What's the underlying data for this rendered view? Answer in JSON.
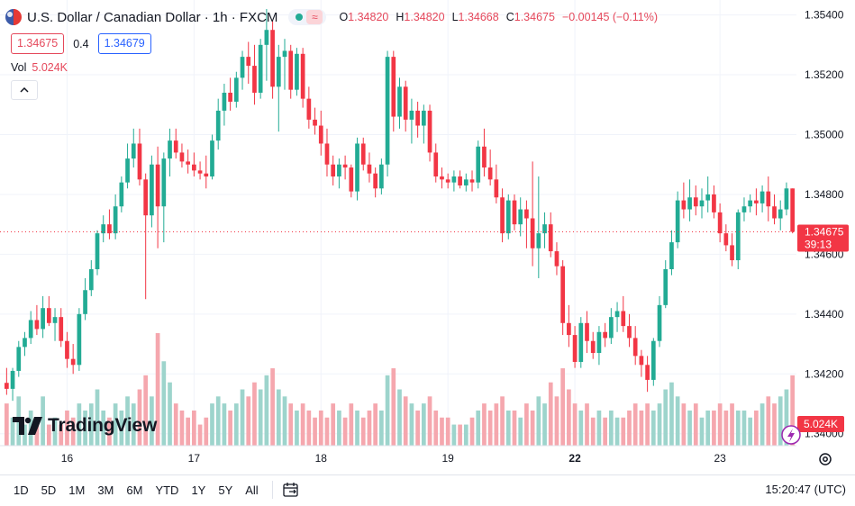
{
  "header": {
    "title": "U.S. Dollar / Canadian Dollar · 1h · FXCM",
    "ohlc": [
      {
        "label": "O",
        "value": "1.34820"
      },
      {
        "label": "H",
        "value": "1.34820"
      },
      {
        "label": "L",
        "value": "1.34668"
      },
      {
        "label": "C",
        "value": "1.34675"
      }
    ],
    "change": "−0.00145 (−0.11%)",
    "status_icon": "market-open-dot",
    "waves_icon": "≈"
  },
  "trade": {
    "sell_price": "1.34675",
    "spread": "0.4",
    "buy_price": "1.34679"
  },
  "volume": {
    "label": "Vol",
    "value": "5.024K"
  },
  "price_axis": {
    "ticks": [
      "1.35400",
      "1.35200",
      "1.35000",
      "1.34800",
      "1.34600",
      "1.34400",
      "1.34200",
      "1.34000"
    ],
    "last_price": "1.34675",
    "countdown": "39:13",
    "last_volume": "5.024K"
  },
  "time_axis": {
    "ticks": [
      "16",
      "17",
      "18",
      "19",
      "22",
      "23"
    ]
  },
  "ranges": [
    "1D",
    "5D",
    "1M",
    "3M",
    "6M",
    "YTD",
    "1Y",
    "5Y",
    "All"
  ],
  "clock": "15:20:47 (UTC)",
  "branding": {
    "logo_text": "TradingView"
  },
  "colors": {
    "up": "#22ab94",
    "down": "#f23645",
    "up_volume": "#9dd4cc",
    "down_volume": "#f5a7ae",
    "accent": "#2962ff"
  },
  "chart_data": {
    "type": "candlestick",
    "symbol": "USDCAD",
    "interval": "1h",
    "ylim": [
      1.3396,
      1.3545
    ],
    "y_ticks": [
      1.354,
      1.352,
      1.35,
      1.348,
      1.346,
      1.344,
      1.342,
      1.34
    ],
    "x_tick_labels": [
      "16",
      "17",
      "18",
      "19",
      "22",
      "23"
    ],
    "last_price": 1.34675,
    "grid": true,
    "candles": [
      [
        1.3417,
        1.3422,
        1.3413,
        1.3415,
        6
      ],
      [
        1.3415,
        1.3422,
        1.3411,
        1.3421,
        4
      ],
      [
        1.3421,
        1.3431,
        1.3419,
        1.3429,
        7
      ],
      [
        1.3429,
        1.3434,
        1.3426,
        1.3432,
        3
      ],
      [
        1.3432,
        1.3441,
        1.343,
        1.3438,
        5
      ],
      [
        1.3438,
        1.3443,
        1.3433,
        1.3435,
        4
      ],
      [
        1.3435,
        1.3446,
        1.3432,
        1.3442,
        7
      ],
      [
        1.3442,
        1.3446,
        1.3436,
        1.3437,
        3
      ],
      [
        1.3437,
        1.3442,
        1.3431,
        1.3439,
        4
      ],
      [
        1.3439,
        1.3442,
        1.3429,
        1.3431,
        3
      ],
      [
        1.3431,
        1.3434,
        1.3422,
        1.3425,
        5
      ],
      [
        1.3425,
        1.343,
        1.342,
        1.3423,
        4
      ],
      [
        1.3423,
        1.3442,
        1.3421,
        1.344,
        6
      ],
      [
        1.344,
        1.3452,
        1.3438,
        1.3448,
        5
      ],
      [
        1.3448,
        1.3458,
        1.3446,
        1.3455,
        6
      ],
      [
        1.3455,
        1.3468,
        1.3453,
        1.3467,
        8
      ],
      [
        1.3467,
        1.3473,
        1.3464,
        1.347,
        5
      ],
      [
        1.347,
        1.3475,
        1.3465,
        1.3467,
        4
      ],
      [
        1.3467,
        1.348,
        1.3465,
        1.3476,
        6
      ],
      [
        1.3476,
        1.3486,
        1.3474,
        1.3484,
        5
      ],
      [
        1.3484,
        1.3497,
        1.3482,
        1.3492,
        7
      ],
      [
        1.3492,
        1.3502,
        1.3489,
        1.3497,
        6
      ],
      [
        1.3497,
        1.3502,
        1.3483,
        1.3485,
        8
      ],
      [
        1.3485,
        1.3487,
        1.3445,
        1.3473,
        10
      ],
      [
        1.3473,
        1.3493,
        1.3469,
        1.349,
        7
      ],
      [
        1.349,
        1.3496,
        1.3462,
        1.3476,
        16
      ],
      [
        1.3476,
        1.3494,
        1.3464,
        1.3492,
        12
      ],
      [
        1.3492,
        1.3502,
        1.3486,
        1.3498,
        9
      ],
      [
        1.3498,
        1.3502,
        1.3492,
        1.3494,
        6
      ],
      [
        1.3494,
        1.3497,
        1.3489,
        1.3491,
        5
      ],
      [
        1.3491,
        1.3495,
        1.3487,
        1.349,
        4
      ],
      [
        1.349,
        1.3494,
        1.3486,
        1.3488,
        5
      ],
      [
        1.3488,
        1.3491,
        1.3485,
        1.3487,
        3
      ],
      [
        1.3487,
        1.3493,
        1.3482,
        1.3486,
        4
      ],
      [
        1.3486,
        1.35,
        1.3485,
        1.3498,
        6
      ],
      [
        1.3498,
        1.3512,
        1.3495,
        1.3508,
        7
      ],
      [
        1.3508,
        1.3517,
        1.3503,
        1.3514,
        6
      ],
      [
        1.3514,
        1.3519,
        1.3508,
        1.3511,
        5
      ],
      [
        1.3511,
        1.3521,
        1.3509,
        1.3519,
        6
      ],
      [
        1.3519,
        1.3528,
        1.3515,
        1.3526,
        8
      ],
      [
        1.3526,
        1.3531,
        1.3517,
        1.3523,
        7
      ],
      [
        1.3523,
        1.353,
        1.351,
        1.3514,
        9
      ],
      [
        1.3514,
        1.3532,
        1.3512,
        1.353,
        8
      ],
      [
        1.353,
        1.3542,
        1.3518,
        1.3535,
        10
      ],
      [
        1.3535,
        1.3538,
        1.3512,
        1.3516,
        11
      ],
      [
        1.3516,
        1.353,
        1.3501,
        1.3526,
        8
      ],
      [
        1.3526,
        1.3532,
        1.3515,
        1.3528,
        7
      ],
      [
        1.3528,
        1.353,
        1.3512,
        1.3515,
        6
      ],
      [
        1.3515,
        1.3529,
        1.3513,
        1.3527,
        5
      ],
      [
        1.3527,
        1.3529,
        1.3509,
        1.3512,
        6
      ],
      [
        1.3512,
        1.3516,
        1.3502,
        1.3505,
        5
      ],
      [
        1.3505,
        1.3509,
        1.35,
        1.3503,
        4
      ],
      [
        1.3503,
        1.3508,
        1.3493,
        1.3497,
        5
      ],
      [
        1.3497,
        1.3502,
        1.3486,
        1.349,
        4
      ],
      [
        1.349,
        1.3493,
        1.3483,
        1.3486,
        6
      ],
      [
        1.3486,
        1.3492,
        1.3482,
        1.349,
        5
      ],
      [
        1.349,
        1.3493,
        1.3485,
        1.3489,
        4
      ],
      [
        1.3489,
        1.349,
        1.3479,
        1.3481,
        6
      ],
      [
        1.3481,
        1.3499,
        1.3478,
        1.3497,
        5
      ],
      [
        1.3497,
        1.3499,
        1.3488,
        1.349,
        4
      ],
      [
        1.349,
        1.3494,
        1.3484,
        1.3487,
        5
      ],
      [
        1.3487,
        1.3489,
        1.3479,
        1.3482,
        6
      ],
      [
        1.3482,
        1.3492,
        1.348,
        1.349,
        5
      ],
      [
        1.349,
        1.3528,
        1.3486,
        1.3526,
        10
      ],
      [
        1.3526,
        1.3528,
        1.3501,
        1.3506,
        11
      ],
      [
        1.3506,
        1.3519,
        1.3502,
        1.3516,
        8
      ],
      [
        1.3516,
        1.3518,
        1.3501,
        1.3505,
        7
      ],
      [
        1.3505,
        1.3512,
        1.3497,
        1.3508,
        6
      ],
      [
        1.3508,
        1.3511,
        1.3499,
        1.3503,
        5
      ],
      [
        1.3503,
        1.351,
        1.3497,
        1.3508,
        6
      ],
      [
        1.3508,
        1.351,
        1.3491,
        1.3494,
        7
      ],
      [
        1.3494,
        1.3497,
        1.3484,
        1.3486,
        5
      ],
      [
        1.3486,
        1.3489,
        1.3482,
        1.3485,
        4
      ],
      [
        1.3485,
        1.3487,
        1.3482,
        1.3484,
        4
      ],
      [
        1.3484,
        1.3488,
        1.3481,
        1.3486,
        3
      ],
      [
        1.3486,
        1.3488,
        1.3482,
        1.3483,
        3
      ],
      [
        1.3483,
        1.3487,
        1.3481,
        1.3485,
        3
      ],
      [
        1.3485,
        1.3488,
        1.3481,
        1.3484,
        4
      ],
      [
        1.3484,
        1.3498,
        1.3482,
        1.3496,
        5
      ],
      [
        1.3496,
        1.3502,
        1.3486,
        1.3489,
        6
      ],
      [
        1.3489,
        1.3495,
        1.3483,
        1.3485,
        5
      ],
      [
        1.3485,
        1.349,
        1.3477,
        1.3479,
        6
      ],
      [
        1.3479,
        1.3482,
        1.3464,
        1.3467,
        7
      ],
      [
        1.3467,
        1.348,
        1.3465,
        1.3478,
        5
      ],
      [
        1.3478,
        1.348,
        1.3468,
        1.347,
        5
      ],
      [
        1.347,
        1.3479,
        1.3466,
        1.3475,
        4
      ],
      [
        1.3475,
        1.3478,
        1.3462,
        1.3472,
        6
      ],
      [
        1.3472,
        1.3491,
        1.3456,
        1.3462,
        5
      ],
      [
        1.3462,
        1.3486,
        1.3452,
        1.3467,
        7
      ],
      [
        1.3467,
        1.3474,
        1.3462,
        1.347,
        6
      ],
      [
        1.347,
        1.3474,
        1.3459,
        1.3461,
        9
      ],
      [
        1.3461,
        1.3464,
        1.3453,
        1.3456,
        7
      ],
      [
        1.3456,
        1.3458,
        1.3433,
        1.3437,
        11
      ],
      [
        1.3437,
        1.3443,
        1.3429,
        1.3433,
        8
      ],
      [
        1.3433,
        1.3436,
        1.3422,
        1.3424,
        6
      ],
      [
        1.3424,
        1.3439,
        1.3422,
        1.3437,
        5
      ],
      [
        1.3437,
        1.3441,
        1.3427,
        1.3431,
        6
      ],
      [
        1.3431,
        1.3434,
        1.3425,
        1.3427,
        4
      ],
      [
        1.3427,
        1.3436,
        1.3423,
        1.3434,
        5
      ],
      [
        1.3434,
        1.3437,
        1.3429,
        1.3432,
        4
      ],
      [
        1.3432,
        1.3442,
        1.343,
        1.3439,
        5
      ],
      [
        1.3439,
        1.3444,
        1.3434,
        1.3441,
        4
      ],
      [
        1.3441,
        1.3446,
        1.3434,
        1.3436,
        4
      ],
      [
        1.3436,
        1.344,
        1.3429,
        1.3432,
        5
      ],
      [
        1.3432,
        1.3436,
        1.3423,
        1.3426,
        6
      ],
      [
        1.3426,
        1.3428,
        1.3419,
        1.3423,
        5
      ],
      [
        1.3423,
        1.3426,
        1.3414,
        1.3418,
        6
      ],
      [
        1.3418,
        1.3432,
        1.3416,
        1.3431,
        5
      ],
      [
        1.3431,
        1.3446,
        1.3429,
        1.3443,
        6
      ],
      [
        1.3443,
        1.3458,
        1.3442,
        1.3455,
        8
      ],
      [
        1.3455,
        1.3468,
        1.3453,
        1.3464,
        9
      ],
      [
        1.3464,
        1.3481,
        1.3462,
        1.3478,
        7
      ],
      [
        1.3478,
        1.3484,
        1.3472,
        1.3475,
        6
      ],
      [
        1.3475,
        1.3485,
        1.3471,
        1.3479,
        5
      ],
      [
        1.3479,
        1.3483,
        1.3473,
        1.3476,
        6
      ],
      [
        1.3476,
        1.3482,
        1.3472,
        1.3478,
        4
      ],
      [
        1.3478,
        1.3486,
        1.3474,
        1.348,
        5
      ],
      [
        1.348,
        1.3483,
        1.3472,
        1.3474,
        5
      ],
      [
        1.3474,
        1.3477,
        1.3464,
        1.3467,
        6
      ],
      [
        1.3467,
        1.347,
        1.3461,
        1.3463,
        5
      ],
      [
        1.3463,
        1.3467,
        1.3456,
        1.3458,
        6
      ],
      [
        1.3458,
        1.3475,
        1.3455,
        1.3474,
        5
      ],
      [
        1.3474,
        1.3479,
        1.3471,
        1.3476,
        5
      ],
      [
        1.3476,
        1.348,
        1.3474,
        1.3478,
        4
      ],
      [
        1.3478,
        1.3482,
        1.3473,
        1.3477,
        5
      ],
      [
        1.3477,
        1.3483,
        1.3474,
        1.3481,
        6
      ],
      [
        1.3481,
        1.3486,
        1.3471,
        1.3476,
        7
      ],
      [
        1.3476,
        1.348,
        1.347,
        1.3472,
        6
      ],
      [
        1.3472,
        1.3478,
        1.3468,
        1.3475,
        7
      ],
      [
        1.3475,
        1.3484,
        1.3473,
        1.3482,
        8
      ],
      [
        1.3482,
        1.3482,
        1.3467,
        1.34675,
        10
      ]
    ]
  }
}
